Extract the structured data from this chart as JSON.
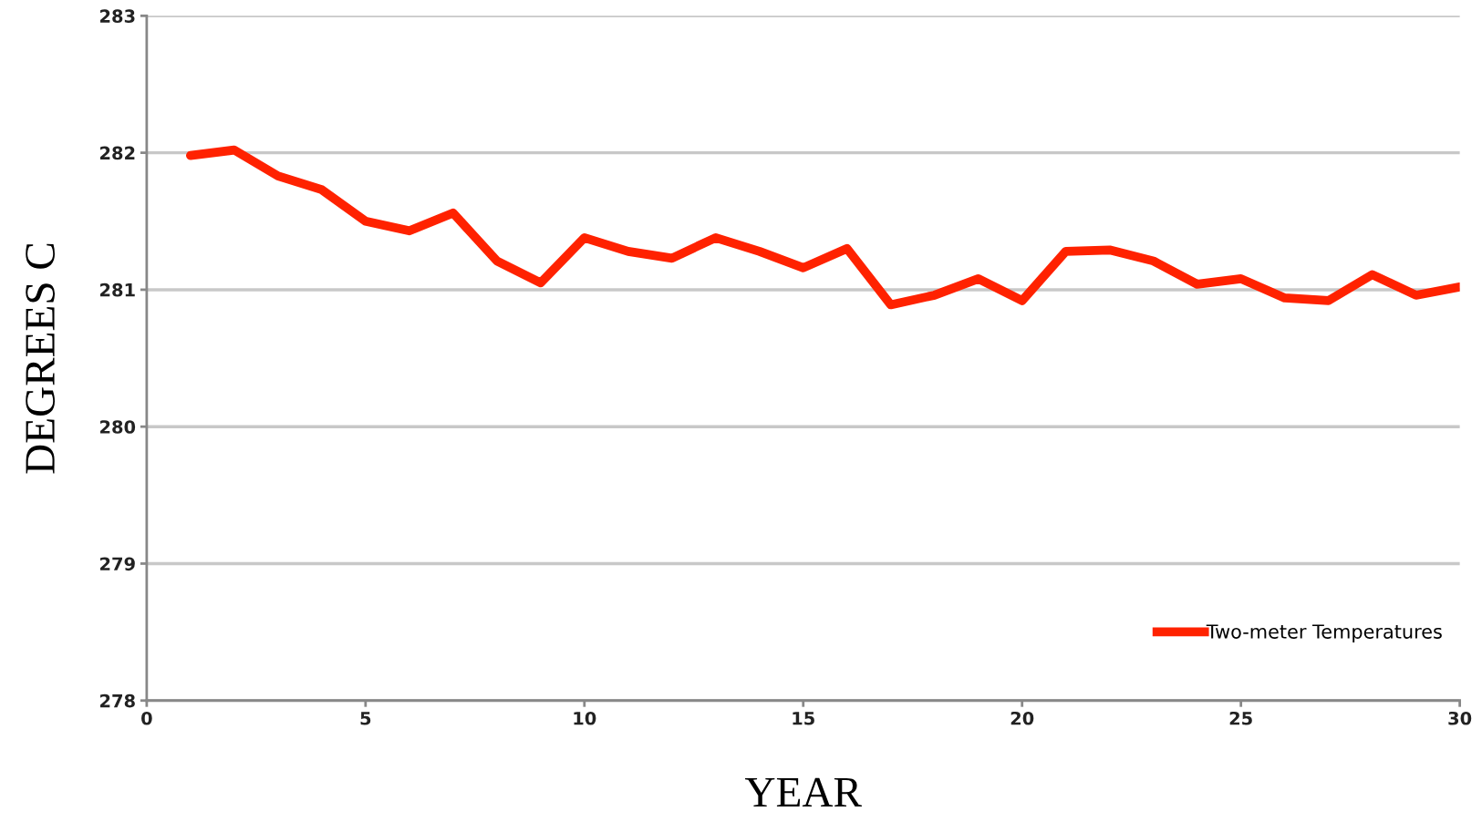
{
  "chart_data": {
    "type": "line",
    "xlabel": "YEAR",
    "ylabel": "DEGREES C",
    "x": [
      1,
      2,
      3,
      4,
      5,
      6,
      7,
      8,
      9,
      10,
      11,
      12,
      13,
      14,
      15,
      16,
      17,
      18,
      19,
      20,
      21,
      22,
      23,
      24,
      25,
      26,
      27,
      28,
      29,
      30
    ],
    "series": [
      {
        "name": "Two-meter Temperatures",
        "color": "#ff2200",
        "values": [
          281.98,
          282.02,
          281.83,
          281.73,
          281.5,
          281.43,
          281.56,
          281.21,
          281.05,
          281.38,
          281.28,
          281.23,
          281.38,
          281.28,
          281.16,
          281.3,
          280.89,
          280.96,
          281.08,
          280.92,
          281.28,
          281.29,
          281.21,
          281.04,
          281.08,
          280.94,
          280.92,
          281.11,
          280.96,
          281.02
        ]
      }
    ],
    "xlim": [
      0,
      30
    ],
    "xticks": [
      0,
      5,
      10,
      15,
      20,
      25,
      30
    ],
    "ylim": [
      278,
      283
    ],
    "yticks": [
      278,
      279,
      280,
      281,
      282,
      283
    ],
    "grid": "y",
    "legend": "bottom right",
    "marker": "none",
    "line_style": "solid"
  }
}
